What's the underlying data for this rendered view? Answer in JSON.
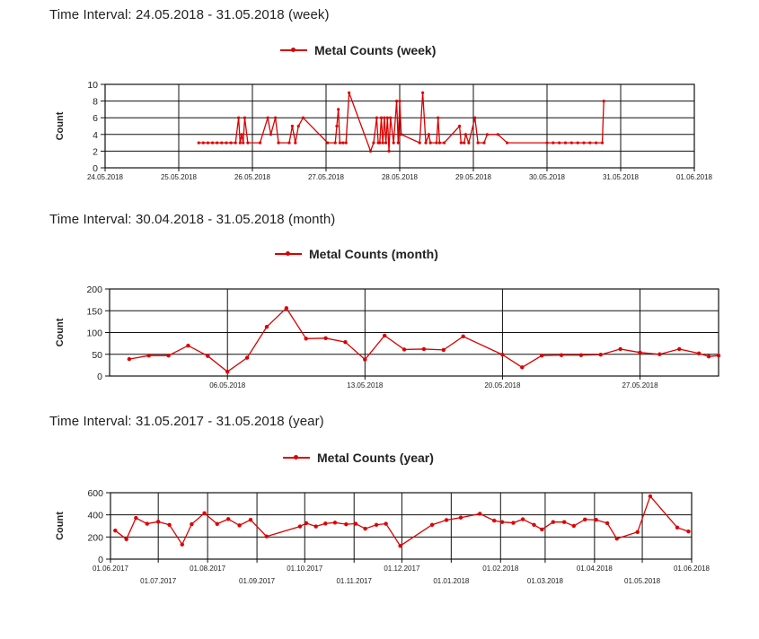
{
  "accent_color": "#dd0000",
  "chart_data": [
    {
      "type": "line",
      "interval_label": "Time Interval: 24.05.2018 - 31.05.2018 (week)",
      "title": "",
      "ylabel": "Count",
      "ylim": [
        0,
        10
      ],
      "yticks": [
        0,
        2,
        4,
        6,
        8,
        10
      ],
      "legend": "top-center",
      "grid": true,
      "xlim": [
        "2018-05-24T00:00",
        "2018-06-01T00:00"
      ],
      "xticks": [
        {
          "at": "2018-05-24T00:00",
          "label": "24.05.2018"
        },
        {
          "at": "2018-05-25T00:00",
          "label": "25.05.2018"
        },
        {
          "at": "2018-05-26T00:00",
          "label": "26.05.2018"
        },
        {
          "at": "2018-05-27T00:00",
          "label": "27.05.2018"
        },
        {
          "at": "2018-05-28T00:00",
          "label": "28.05.2018"
        },
        {
          "at": "2018-05-29T00:00",
          "label": "29.05.2018"
        },
        {
          "at": "2018-05-30T00:00",
          "label": "30.05.2018"
        },
        {
          "at": "2018-05-31T00:00",
          "label": "31.05.2018"
        },
        {
          "at": "2018-06-01T00:00",
          "label": "01.06.2018"
        }
      ],
      "series": [
        {
          "name": "Metal Counts (week)",
          "color": "#dd0000",
          "points": [
            [
              "2018-05-25T06:30",
              3
            ],
            [
              "2018-05-25T08:00",
              3
            ],
            [
              "2018-05-25T09:30",
              3
            ],
            [
              "2018-05-25T11:00",
              3
            ],
            [
              "2018-05-25T12:30",
              3
            ],
            [
              "2018-05-25T14:00",
              3
            ],
            [
              "2018-05-25T15:30",
              3
            ],
            [
              "2018-05-25T17:00",
              3
            ],
            [
              "2018-05-25T18:30",
              3
            ],
            [
              "2018-05-25T19:30",
              6
            ],
            [
              "2018-05-25T20:00",
              3
            ],
            [
              "2018-05-25T20:30",
              4
            ],
            [
              "2018-05-25T21:00",
              3
            ],
            [
              "2018-05-25T21:30",
              6
            ],
            [
              "2018-05-25T22:30",
              3
            ],
            [
              "2018-05-26T02:30",
              3
            ],
            [
              "2018-05-26T05:00",
              6
            ],
            [
              "2018-05-26T06:00",
              4
            ],
            [
              "2018-05-26T07:30",
              6
            ],
            [
              "2018-05-26T08:30",
              3
            ],
            [
              "2018-05-26T12:00",
              3
            ],
            [
              "2018-05-26T13:00",
              5
            ],
            [
              "2018-05-26T14:00",
              3
            ],
            [
              "2018-05-26T15:00",
              5
            ],
            [
              "2018-05-26T16:30",
              6
            ],
            [
              "2018-05-27T00:30",
              3
            ],
            [
              "2018-05-27T03:00",
              3
            ],
            [
              "2018-05-27T03:30",
              5
            ],
            [
              "2018-05-27T04:00",
              7
            ],
            [
              "2018-05-27T04:30",
              3
            ],
            [
              "2018-05-27T05:30",
              3
            ],
            [
              "2018-05-27T06:30",
              3
            ],
            [
              "2018-05-27T07:30",
              9
            ],
            [
              "2018-05-27T14:30",
              2
            ],
            [
              "2018-05-27T15:30",
              3
            ],
            [
              "2018-05-27T16:30",
              6
            ],
            [
              "2018-05-27T17:00",
              3
            ],
            [
              "2018-05-27T17:30",
              3
            ],
            [
              "2018-05-27T18:00",
              6
            ],
            [
              "2018-05-27T18:30",
              3
            ],
            [
              "2018-05-27T19:00",
              6
            ],
            [
              "2018-05-27T19:30",
              3
            ],
            [
              "2018-05-27T20:00",
              6
            ],
            [
              "2018-05-27T20:30",
              2
            ],
            [
              "2018-05-27T21:00",
              6
            ],
            [
              "2018-05-27T22:00",
              3
            ],
            [
              "2018-05-27T23:00",
              8
            ],
            [
              "2018-05-27T23:30",
              3
            ],
            [
              "2018-05-28T00:00",
              8
            ],
            [
              "2018-05-28T00:30",
              4
            ],
            [
              "2018-05-28T06:30",
              3
            ],
            [
              "2018-05-28T07:30",
              9
            ],
            [
              "2018-05-28T08:30",
              3
            ],
            [
              "2018-05-28T09:30",
              4
            ],
            [
              "2018-05-28T10:00",
              3
            ],
            [
              "2018-05-28T12:00",
              3
            ],
            [
              "2018-05-28T12:30",
              6
            ],
            [
              "2018-05-28T13:00",
              3
            ],
            [
              "2018-05-28T14:30",
              3
            ],
            [
              "2018-05-28T19:30",
              5
            ],
            [
              "2018-05-28T20:00",
              3
            ],
            [
              "2018-05-28T21:00",
              3
            ],
            [
              "2018-05-28T21:30",
              4
            ],
            [
              "2018-05-28T22:30",
              3
            ],
            [
              "2018-05-29T00:30",
              6
            ],
            [
              "2018-05-29T01:30",
              3
            ],
            [
              "2018-05-29T03:30",
              3
            ],
            [
              "2018-05-29T04:30",
              4
            ],
            [
              "2018-05-29T08:00",
              4
            ],
            [
              "2018-05-29T11:00",
              3
            ],
            [
              "2018-05-30T00:00",
              3
            ],
            [
              "2018-05-30T02:00",
              3
            ],
            [
              "2018-05-30T04:00",
              3
            ],
            [
              "2018-05-30T06:00",
              3
            ],
            [
              "2018-05-30T08:00",
              3
            ],
            [
              "2018-05-30T10:00",
              3
            ],
            [
              "2018-05-30T12:00",
              3
            ],
            [
              "2018-05-30T14:00",
              3
            ],
            [
              "2018-05-30T16:00",
              3
            ],
            [
              "2018-05-30T18:00",
              3
            ],
            [
              "2018-05-30T18:30",
              8
            ]
          ]
        }
      ]
    },
    {
      "type": "line",
      "interval_label": "Time Interval: 30.04.2018 - 31.05.2018 (month)",
      "title": "",
      "ylabel": "Count",
      "ylim": [
        0,
        200
      ],
      "yticks": [
        0,
        50,
        100,
        150,
        200
      ],
      "legend": "top-center",
      "grid": true,
      "xlim": [
        "2018-04-30",
        "2018-05-31"
      ],
      "xticks": [
        {
          "at": "2018-05-06",
          "label": "06.05.2018"
        },
        {
          "at": "2018-05-13",
          "label": "13.05.2018"
        },
        {
          "at": "2018-05-20",
          "label": "20.05.2018"
        },
        {
          "at": "2018-05-27",
          "label": "27.05.2018"
        }
      ],
      "series": [
        {
          "name": "Metal Counts (month)",
          "color": "#dd0000",
          "points": [
            [
              "2018-05-01",
              39
            ],
            [
              "2018-05-02",
              47
            ],
            [
              "2018-05-03",
              47
            ],
            [
              "2018-05-04",
              70
            ],
            [
              "2018-05-05",
              46
            ],
            [
              "2018-05-06",
              10
            ],
            [
              "2018-05-07",
              42
            ],
            [
              "2018-05-08",
              113
            ],
            [
              "2018-05-09",
              156
            ],
            [
              "2018-05-10",
              86
            ],
            [
              "2018-05-11",
              87
            ],
            [
              "2018-05-12",
              78
            ],
            [
              "2018-05-13",
              38
            ],
            [
              "2018-05-14",
              93
            ],
            [
              "2018-05-15",
              61
            ],
            [
              "2018-05-16",
              62
            ],
            [
              "2018-05-17",
              60
            ],
            [
              "2018-05-18",
              91
            ],
            [
              "2018-05-20",
              49
            ],
            [
              "2018-05-21",
              20
            ],
            [
              "2018-05-22",
              47
            ],
            [
              "2018-05-23",
              48
            ],
            [
              "2018-05-24",
              48
            ],
            [
              "2018-05-25",
              49
            ],
            [
              "2018-05-26",
              62
            ],
            [
              "2018-05-27",
              54
            ],
            [
              "2018-05-28",
              50
            ],
            [
              "2018-05-29",
              62
            ],
            [
              "2018-05-30",
              52
            ],
            [
              "2018-05-30T12:00",
              45
            ],
            [
              "2018-05-31",
              47
            ]
          ]
        }
      ]
    },
    {
      "type": "line",
      "interval_label": "Time Interval: 31.05.2017 - 31.05.2018 (year)",
      "title": "",
      "ylabel": "Count",
      "ylim": [
        0,
        600
      ],
      "yticks": [
        0,
        200,
        400,
        600
      ],
      "legend": "top-center",
      "grid": true,
      "xlim": [
        "2017-06-01",
        "2018-06-01"
      ],
      "xticks": [
        {
          "at": "2017-06-01",
          "label": "01.06.2017",
          "row": 0
        },
        {
          "at": "2017-07-01",
          "label": "01.07.2017",
          "row": 1
        },
        {
          "at": "2017-08-01",
          "label": "01.08.2017",
          "row": 0
        },
        {
          "at": "2017-09-01",
          "label": "01.09.2017",
          "row": 1
        },
        {
          "at": "2017-10-01",
          "label": "01.10.2017",
          "row": 0
        },
        {
          "at": "2017-11-01",
          "label": "01.11.2017",
          "row": 1
        },
        {
          "at": "2017-12-01",
          "label": "01.12.2017",
          "row": 0
        },
        {
          "at": "2018-01-01",
          "label": "01.01.2018",
          "row": 1
        },
        {
          "at": "2018-02-01",
          "label": "01.02.2018",
          "row": 0
        },
        {
          "at": "2018-03-01",
          "label": "01.03.2018",
          "row": 1
        },
        {
          "at": "2018-04-01",
          "label": "01.04.2018",
          "row": 0
        },
        {
          "at": "2018-05-01",
          "label": "01.05.2018",
          "row": 1
        },
        {
          "at": "2018-06-01",
          "label": "01.06.2018",
          "row": 0
        }
      ],
      "series": [
        {
          "name": "Metal Counts (year)",
          "color": "#dd0000",
          "points": [
            [
              "2017-06-04",
              258
            ],
            [
              "2017-06-11",
              180
            ],
            [
              "2017-06-17",
              372
            ],
            [
              "2017-06-24",
              320
            ],
            [
              "2017-07-01",
              338
            ],
            [
              "2017-07-08",
              310
            ],
            [
              "2017-07-16",
              132
            ],
            [
              "2017-07-22",
              316
            ],
            [
              "2017-07-30",
              415
            ],
            [
              "2017-08-07",
              318
            ],
            [
              "2017-08-14",
              362
            ],
            [
              "2017-08-21",
              305
            ],
            [
              "2017-08-28",
              355
            ],
            [
              "2017-09-07",
              205
            ],
            [
              "2017-09-28",
              295
            ],
            [
              "2017-10-02",
              325
            ],
            [
              "2017-10-08",
              295
            ],
            [
              "2017-10-14",
              322
            ],
            [
              "2017-10-20",
              330
            ],
            [
              "2017-10-27",
              315
            ],
            [
              "2017-11-02",
              320
            ],
            [
              "2017-11-08",
              275
            ],
            [
              "2017-11-15",
              310
            ],
            [
              "2017-11-21",
              320
            ],
            [
              "2017-11-30",
              120
            ],
            [
              "2017-12-20",
              310
            ],
            [
              "2017-12-29",
              353
            ],
            [
              "2018-01-07",
              375
            ],
            [
              "2018-01-19",
              410
            ],
            [
              "2018-01-28",
              348
            ],
            [
              "2018-02-02",
              335
            ],
            [
              "2018-02-09",
              328
            ],
            [
              "2018-02-15",
              360
            ],
            [
              "2018-02-22",
              310
            ],
            [
              "2018-02-27",
              268
            ],
            [
              "2018-03-06",
              335
            ],
            [
              "2018-03-13",
              335
            ],
            [
              "2018-03-19",
              300
            ],
            [
              "2018-03-26",
              358
            ],
            [
              "2018-04-02",
              355
            ],
            [
              "2018-04-09",
              325
            ],
            [
              "2018-04-15",
              185
            ],
            [
              "2018-04-28",
              245
            ],
            [
              "2018-05-06",
              568
            ],
            [
              "2018-05-23",
              285
            ],
            [
              "2018-05-30",
              250
            ]
          ]
        }
      ]
    }
  ]
}
